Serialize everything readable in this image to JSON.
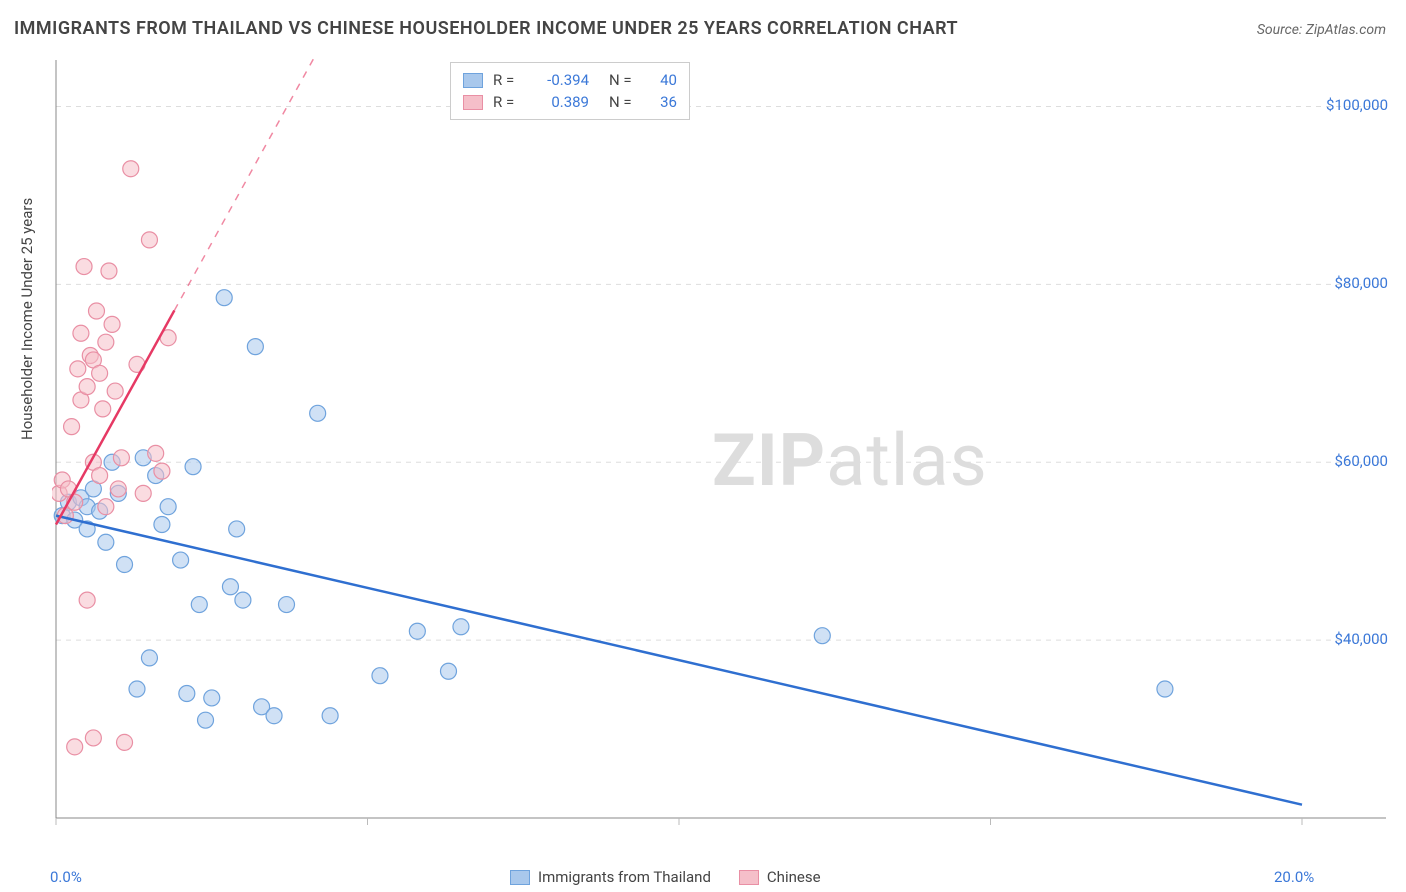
{
  "title": "IMMIGRANTS FROM THAILAND VS CHINESE HOUSEHOLDER INCOME UNDER 25 YEARS CORRELATION CHART",
  "source": "Source: ZipAtlas.com",
  "ylabel": "Householder Income Under 25 years",
  "watermark_bold": "ZIP",
  "watermark_rest": "atlas",
  "chart": {
    "type": "scatter-with-regression",
    "background_color": "#ffffff",
    "grid_color": "#dddddd",
    "axis_color": "#888888",
    "tick_color": "#bbbbbb",
    "xlim": [
      0,
      20
    ],
    "ylim": [
      20000,
      105000
    ],
    "x_ticks": [
      0,
      5,
      10,
      15,
      20
    ],
    "x_tick_labels": [
      "0.0%",
      "",
      "",
      "",
      "20.0%"
    ],
    "y_ticks": [
      40000,
      60000,
      80000,
      100000
    ],
    "y_tick_labels": [
      "$40,000",
      "$60,000",
      "$80,000",
      "$100,000"
    ],
    "marker_radius": 8,
    "marker_opacity": 0.55,
    "line_width_solid": 2.5,
    "line_width_dash": 1.5,
    "series": [
      {
        "name": "Immigrants from Thailand",
        "color_fill": "#a9c8ec",
        "color_stroke": "#6fa3dd",
        "line_color": "#2f6fd0",
        "R": "-0.394",
        "N": "40",
        "regression": {
          "x1": 0,
          "y1": 54000,
          "x2": 20,
          "y2": 21500,
          "dash_from_x": null
        },
        "points": [
          [
            0.1,
            54000
          ],
          [
            0.2,
            55500
          ],
          [
            0.3,
            53500
          ],
          [
            0.4,
            56000
          ],
          [
            0.5,
            55000
          ],
          [
            0.5,
            52500
          ],
          [
            0.6,
            57000
          ],
          [
            0.7,
            54500
          ],
          [
            0.8,
            51000
          ],
          [
            0.9,
            60000
          ],
          [
            1.0,
            56500
          ],
          [
            1.1,
            48500
          ],
          [
            1.3,
            34500
          ],
          [
            1.4,
            60500
          ],
          [
            1.5,
            38000
          ],
          [
            1.6,
            58500
          ],
          [
            1.7,
            53000
          ],
          [
            1.8,
            55000
          ],
          [
            2.0,
            49000
          ],
          [
            2.1,
            34000
          ],
          [
            2.2,
            59500
          ],
          [
            2.3,
            44000
          ],
          [
            2.4,
            31000
          ],
          [
            2.5,
            33500
          ],
          [
            2.7,
            78500
          ],
          [
            2.8,
            46000
          ],
          [
            2.9,
            52500
          ],
          [
            3.0,
            44500
          ],
          [
            3.2,
            73000
          ],
          [
            3.3,
            32500
          ],
          [
            3.5,
            31500
          ],
          [
            3.7,
            44000
          ],
          [
            4.2,
            65500
          ],
          [
            4.4,
            31500
          ],
          [
            5.2,
            36000
          ],
          [
            5.8,
            41000
          ],
          [
            6.3,
            36500
          ],
          [
            6.5,
            41500
          ],
          [
            12.3,
            40500
          ],
          [
            17.8,
            34500
          ]
        ]
      },
      {
        "name": "Chinese",
        "color_fill": "#f5bfc9",
        "color_stroke": "#e98fa4",
        "line_color": "#e63964",
        "R": "0.389",
        "N": "36",
        "regression": {
          "x1": 0,
          "y1": 53000,
          "x2": 4.5,
          "y2": 110000,
          "dash_from_x": 1.9
        },
        "points": [
          [
            0.05,
            56500
          ],
          [
            0.1,
            58000
          ],
          [
            0.15,
            54000
          ],
          [
            0.2,
            57000
          ],
          [
            0.25,
            64000
          ],
          [
            0.3,
            55500
          ],
          [
            0.35,
            70500
          ],
          [
            0.4,
            67000
          ],
          [
            0.4,
            74500
          ],
          [
            0.45,
            82000
          ],
          [
            0.5,
            68500
          ],
          [
            0.5,
            44500
          ],
          [
            0.55,
            72000
          ],
          [
            0.6,
            71500
          ],
          [
            0.6,
            60000
          ],
          [
            0.65,
            77000
          ],
          [
            0.7,
            70000
          ],
          [
            0.7,
            58500
          ],
          [
            0.75,
            66000
          ],
          [
            0.8,
            73500
          ],
          [
            0.8,
            55000
          ],
          [
            0.85,
            81500
          ],
          [
            0.9,
            75500
          ],
          [
            0.95,
            68000
          ],
          [
            1.0,
            57000
          ],
          [
            1.05,
            60500
          ],
          [
            1.1,
            28500
          ],
          [
            1.2,
            93000
          ],
          [
            1.3,
            71000
          ],
          [
            1.4,
            56500
          ],
          [
            1.5,
            85000
          ],
          [
            1.6,
            61000
          ],
          [
            1.7,
            59000
          ],
          [
            1.8,
            74000
          ],
          [
            0.3,
            28000
          ],
          [
            0.6,
            29000
          ]
        ]
      }
    ]
  },
  "legend_top": [
    {
      "swatch_fill": "#a9c8ec",
      "swatch_stroke": "#6fa3dd",
      "R_label": "R =",
      "R_val": "-0.394",
      "N_label": "N =",
      "N_val": "40"
    },
    {
      "swatch_fill": "#f5bfc9",
      "swatch_stroke": "#e98fa4",
      "R_label": "R =",
      "R_val": "0.389",
      "N_label": "N =",
      "N_val": "36"
    }
  ],
  "legend_bottom": [
    {
      "swatch_fill": "#a9c8ec",
      "swatch_stroke": "#6fa3dd",
      "label": "Immigrants from Thailand"
    },
    {
      "swatch_fill": "#f5bfc9",
      "swatch_stroke": "#e98fa4",
      "label": "Chinese"
    }
  ]
}
